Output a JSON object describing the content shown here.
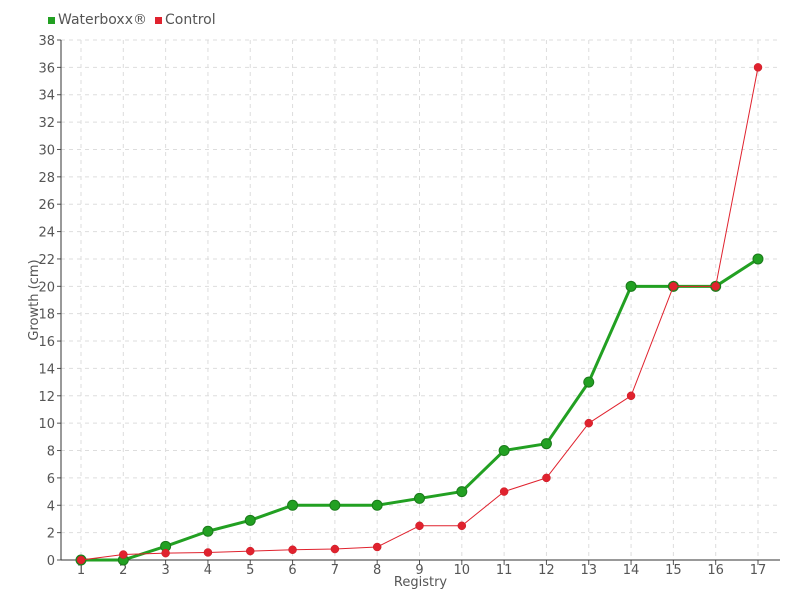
{
  "chart_data": {
    "type": "line",
    "categories": [
      "1",
      "2",
      "3",
      "4",
      "5",
      "6",
      "7",
      "8",
      "9",
      "10",
      "11",
      "12",
      "13",
      "14",
      "15",
      "16",
      "17"
    ],
    "series": [
      {
        "name": "Waterboxx®",
        "color": "#22a022",
        "values": [
          0,
          0,
          1,
          2.1,
          2.9,
          4,
          4,
          4,
          4.5,
          5,
          8,
          8.5,
          13,
          20,
          20,
          20,
          22
        ]
      },
      {
        "name": "Control",
        "color": "#e0222e",
        "values": [
          0,
          0.4,
          0.5,
          0.55,
          0.65,
          0.75,
          0.8,
          0.95,
          2.5,
          2.5,
          5,
          6,
          10,
          12,
          20,
          20,
          36
        ]
      }
    ],
    "xlabel": "Registry",
    "ylabel": "Growth (cm)",
    "ylim": [
      0,
      38
    ],
    "yticks": [
      0,
      2,
      4,
      6,
      8,
      10,
      12,
      14,
      16,
      18,
      20,
      22,
      24,
      26,
      28,
      30,
      32,
      34,
      36,
      38
    ],
    "grid": true,
    "legend_position": "top-left"
  }
}
